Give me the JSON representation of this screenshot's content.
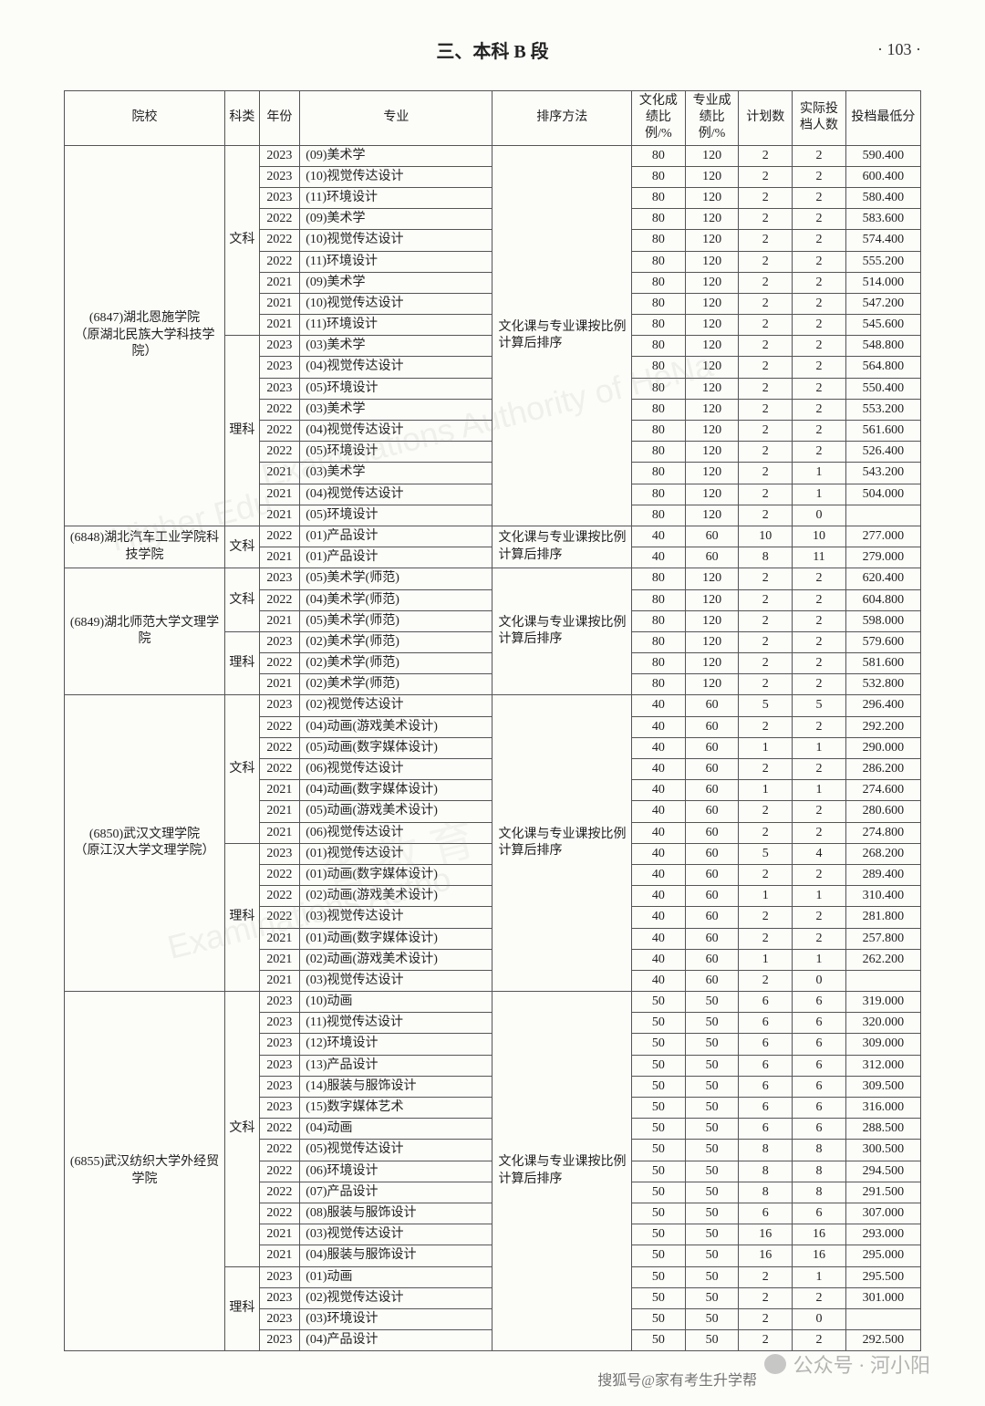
{
  "header": {
    "section_title_prefix": "三、本科 ",
    "section_title_b": "B",
    "section_title_suffix": " 段",
    "page_number": "· 103 ·"
  },
  "columns": [
    "院校",
    "科类",
    "年份",
    "专业",
    "排序方法",
    "文化成绩比例/%",
    "专业成绩比例/%",
    "计划数",
    "实际投档人数",
    "投档最低分"
  ],
  "sort_method": "文化课与专业课按比例计算后排序",
  "schools": [
    {
      "name": "(6847)湖北恩施学院\n（原湖北民族大学科技学院）",
      "groups": [
        {
          "kelei": "文科",
          "rows": [
            {
              "y": "2023",
              "m": "(09)美术学",
              "a": "80",
              "b": "120",
              "c": "2",
              "d": "2",
              "s": "590.400"
            },
            {
              "y": "2023",
              "m": "(10)视觉传达设计",
              "a": "80",
              "b": "120",
              "c": "2",
              "d": "2",
              "s": "600.400"
            },
            {
              "y": "2023",
              "m": "(11)环境设计",
              "a": "80",
              "b": "120",
              "c": "2",
              "d": "2",
              "s": "580.400"
            },
            {
              "y": "2022",
              "m": "(09)美术学",
              "a": "80",
              "b": "120",
              "c": "2",
              "d": "2",
              "s": "583.600"
            },
            {
              "y": "2022",
              "m": "(10)视觉传达设计",
              "a": "80",
              "b": "120",
              "c": "2",
              "d": "2",
              "s": "574.400"
            },
            {
              "y": "2022",
              "m": "(11)环境设计",
              "a": "80",
              "b": "120",
              "c": "2",
              "d": "2",
              "s": "555.200"
            },
            {
              "y": "2021",
              "m": "(09)美术学",
              "a": "80",
              "b": "120",
              "c": "2",
              "d": "2",
              "s": "514.000"
            },
            {
              "y": "2021",
              "m": "(10)视觉传达设计",
              "a": "80",
              "b": "120",
              "c": "2",
              "d": "2",
              "s": "547.200"
            },
            {
              "y": "2021",
              "m": "(11)环境设计",
              "a": "80",
              "b": "120",
              "c": "2",
              "d": "2",
              "s": "545.600"
            }
          ]
        },
        {
          "kelei": "理科",
          "rows": [
            {
              "y": "2023",
              "m": "(03)美术学",
              "a": "80",
              "b": "120",
              "c": "2",
              "d": "2",
              "s": "548.800"
            },
            {
              "y": "2023",
              "m": "(04)视觉传达设计",
              "a": "80",
              "b": "120",
              "c": "2",
              "d": "2",
              "s": "564.800"
            },
            {
              "y": "2023",
              "m": "(05)环境设计",
              "a": "80",
              "b": "120",
              "c": "2",
              "d": "2",
              "s": "550.400"
            },
            {
              "y": "2022",
              "m": "(03)美术学",
              "a": "80",
              "b": "120",
              "c": "2",
              "d": "2",
              "s": "553.200"
            },
            {
              "y": "2022",
              "m": "(04)视觉传达设计",
              "a": "80",
              "b": "120",
              "c": "2",
              "d": "2",
              "s": "561.600"
            },
            {
              "y": "2022",
              "m": "(05)环境设计",
              "a": "80",
              "b": "120",
              "c": "2",
              "d": "2",
              "s": "526.400"
            },
            {
              "y": "2021",
              "m": "(03)美术学",
              "a": "80",
              "b": "120",
              "c": "2",
              "d": "1",
              "s": "543.200"
            },
            {
              "y": "2021",
              "m": "(04)视觉传达设计",
              "a": "80",
              "b": "120",
              "c": "2",
              "d": "1",
              "s": "504.000"
            },
            {
              "y": "2021",
              "m": "(05)环境设计",
              "a": "80",
              "b": "120",
              "c": "2",
              "d": "0",
              "s": ""
            }
          ]
        }
      ]
    },
    {
      "name": "(6848)湖北汽车工业学院科技学院",
      "groups": [
        {
          "kelei": "文科",
          "rows": [
            {
              "y": "2022",
              "m": "(01)产品设计",
              "a": "40",
              "b": "60",
              "c": "10",
              "d": "10",
              "s": "277.000"
            },
            {
              "y": "2021",
              "m": "(01)产品设计",
              "a": "40",
              "b": "60",
              "c": "8",
              "d": "11",
              "s": "279.000"
            }
          ]
        }
      ]
    },
    {
      "name": "(6849)湖北师范大学文理学院",
      "groups": [
        {
          "kelei": "文科",
          "rows": [
            {
              "y": "2023",
              "m": "(05)美术学(师范)",
              "a": "80",
              "b": "120",
              "c": "2",
              "d": "2",
              "s": "620.400"
            },
            {
              "y": "2022",
              "m": "(04)美术学(师范)",
              "a": "80",
              "b": "120",
              "c": "2",
              "d": "2",
              "s": "604.800"
            },
            {
              "y": "2021",
              "m": "(05)美术学(师范)",
              "a": "80",
              "b": "120",
              "c": "2",
              "d": "2",
              "s": "598.000"
            }
          ]
        },
        {
          "kelei": "理科",
          "rows": [
            {
              "y": "2023",
              "m": "(02)美术学(师范)",
              "a": "80",
              "b": "120",
              "c": "2",
              "d": "2",
              "s": "579.600"
            },
            {
              "y": "2022",
              "m": "(02)美术学(师范)",
              "a": "80",
              "b": "120",
              "c": "2",
              "d": "2",
              "s": "581.600"
            },
            {
              "y": "2021",
              "m": "(02)美术学(师范)",
              "a": "80",
              "b": "120",
              "c": "2",
              "d": "2",
              "s": "532.800"
            }
          ]
        }
      ]
    },
    {
      "name": "(6850)武汉文理学院\n（原江汉大学文理学院）",
      "groups": [
        {
          "kelei": "文科",
          "rows": [
            {
              "y": "2023",
              "m": "(02)视觉传达设计",
              "a": "40",
              "b": "60",
              "c": "5",
              "d": "5",
              "s": "296.400"
            },
            {
              "y": "2022",
              "m": "(04)动画(游戏美术设计)",
              "a": "40",
              "b": "60",
              "c": "2",
              "d": "2",
              "s": "292.200"
            },
            {
              "y": "2022",
              "m": "(05)动画(数字媒体设计)",
              "a": "40",
              "b": "60",
              "c": "1",
              "d": "1",
              "s": "290.000"
            },
            {
              "y": "2022",
              "m": "(06)视觉传达设计",
              "a": "40",
              "b": "60",
              "c": "2",
              "d": "2",
              "s": "286.200"
            },
            {
              "y": "2021",
              "m": "(04)动画(数字媒体设计)",
              "a": "40",
              "b": "60",
              "c": "1",
              "d": "1",
              "s": "274.600"
            },
            {
              "y": "2021",
              "m": "(05)动画(游戏美术设计)",
              "a": "40",
              "b": "60",
              "c": "2",
              "d": "2",
              "s": "280.600"
            },
            {
              "y": "2021",
              "m": "(06)视觉传达设计",
              "a": "40",
              "b": "60",
              "c": "2",
              "d": "2",
              "s": "274.800"
            }
          ]
        },
        {
          "kelei": "理科",
          "rows": [
            {
              "y": "2023",
              "m": "(01)视觉传达设计",
              "a": "40",
              "b": "60",
              "c": "5",
              "d": "4",
              "s": "268.200"
            },
            {
              "y": "2022",
              "m": "(01)动画(数字媒体设计)",
              "a": "40",
              "b": "60",
              "c": "2",
              "d": "2",
              "s": "289.400"
            },
            {
              "y": "2022",
              "m": "(02)动画(游戏美术设计)",
              "a": "40",
              "b": "60",
              "c": "1",
              "d": "1",
              "s": "310.400"
            },
            {
              "y": "2022",
              "m": "(03)视觉传达设计",
              "a": "40",
              "b": "60",
              "c": "2",
              "d": "2",
              "s": "281.800"
            },
            {
              "y": "2021",
              "m": "(01)动画(数字媒体设计)",
              "a": "40",
              "b": "60",
              "c": "2",
              "d": "2",
              "s": "257.800"
            },
            {
              "y": "2021",
              "m": "(02)动画(游戏美术设计)",
              "a": "40",
              "b": "60",
              "c": "1",
              "d": "1",
              "s": "262.200"
            },
            {
              "y": "2021",
              "m": "(03)视觉传达设计",
              "a": "40",
              "b": "60",
              "c": "2",
              "d": "0",
              "s": ""
            }
          ]
        }
      ]
    },
    {
      "name": "(6855)武汉纺织大学外经贸学院",
      "groups": [
        {
          "kelei": "文科",
          "rows": [
            {
              "y": "2023",
              "m": "(10)动画",
              "a": "50",
              "b": "50",
              "c": "6",
              "d": "6",
              "s": "319.000"
            },
            {
              "y": "2023",
              "m": "(11)视觉传达设计",
              "a": "50",
              "b": "50",
              "c": "6",
              "d": "6",
              "s": "320.000"
            },
            {
              "y": "2023",
              "m": "(12)环境设计",
              "a": "50",
              "b": "50",
              "c": "6",
              "d": "6",
              "s": "309.000"
            },
            {
              "y": "2023",
              "m": "(13)产品设计",
              "a": "50",
              "b": "50",
              "c": "6",
              "d": "6",
              "s": "312.000"
            },
            {
              "y": "2023",
              "m": "(14)服装与服饰设计",
              "a": "50",
              "b": "50",
              "c": "6",
              "d": "6",
              "s": "309.500"
            },
            {
              "y": "2023",
              "m": "(15)数字媒体艺术",
              "a": "50",
              "b": "50",
              "c": "6",
              "d": "6",
              "s": "316.000"
            },
            {
              "y": "2022",
              "m": "(04)动画",
              "a": "50",
              "b": "50",
              "c": "6",
              "d": "6",
              "s": "288.500"
            },
            {
              "y": "2022",
              "m": "(05)视觉传达设计",
              "a": "50",
              "b": "50",
              "c": "8",
              "d": "8",
              "s": "300.500"
            },
            {
              "y": "2022",
              "m": "(06)环境设计",
              "a": "50",
              "b": "50",
              "c": "8",
              "d": "8",
              "s": "294.500"
            },
            {
              "y": "2022",
              "m": "(07)产品设计",
              "a": "50",
              "b": "50",
              "c": "8",
              "d": "8",
              "s": "291.500"
            },
            {
              "y": "2022",
              "m": "(08)服装与服饰设计",
              "a": "50",
              "b": "50",
              "c": "6",
              "d": "6",
              "s": "307.000"
            },
            {
              "y": "2021",
              "m": "(03)视觉传达设计",
              "a": "50",
              "b": "50",
              "c": "16",
              "d": "16",
              "s": "293.000"
            },
            {
              "y": "2021",
              "m": "(04)服装与服饰设计",
              "a": "50",
              "b": "50",
              "c": "16",
              "d": "16",
              "s": "295.000"
            }
          ]
        },
        {
          "kelei": "理科",
          "rows": [
            {
              "y": "2023",
              "m": "(01)动画",
              "a": "50",
              "b": "50",
              "c": "2",
              "d": "1",
              "s": "295.500"
            },
            {
              "y": "2023",
              "m": "(02)视觉传达设计",
              "a": "50",
              "b": "50",
              "c": "2",
              "d": "2",
              "s": "301.000"
            },
            {
              "y": "2023",
              "m": "(03)环境设计",
              "a": "50",
              "b": "50",
              "c": "2",
              "d": "0",
              "s": ""
            },
            {
              "y": "2023",
              "m": "(04)产品设计",
              "a": "50",
              "b": "50",
              "c": "2",
              "d": "2",
              "s": "292.500"
            }
          ]
        }
      ]
    }
  ],
  "watermarks": {
    "wm1": "Examinations Authority of HeNa",
    "wm2": "Higher Edu",
    "wm3": "省 教 育",
    "wm4": "Examinations Autho"
  },
  "footer": {
    "badge": "公众号 · 河小阳",
    "sub": "搜狐号@家有考生升学帮"
  },
  "style": {
    "page_bg": "#fcfcf9",
    "border_color": "#555555",
    "text_color": "#222222",
    "font_size_body": 14,
    "font_size_header": 20
  }
}
